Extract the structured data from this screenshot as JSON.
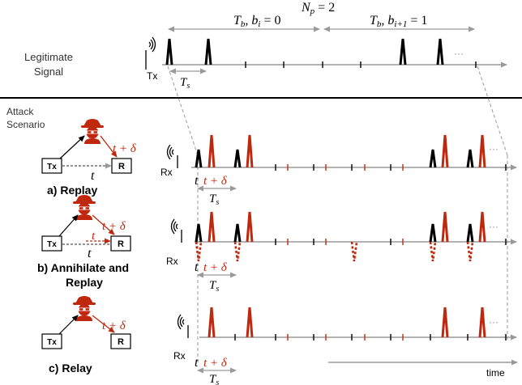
{
  "legit": {
    "label_line1": "Legitimate",
    "label_line2": "Signal",
    "tx": "Tx",
    "tb0": "T",
    "tb0_sub": "b",
    "tb0_rest": ", b",
    "tb0_sub2": "i",
    "tb0_val": " = 0",
    "np": "N",
    "np_sub": "p",
    "np_val": " = 2",
    "tb1": "T",
    "tb1_sub": "b",
    "tb1_rest": ", b",
    "tb1_sub2": "i+1",
    "tb1_val": " = 1",
    "ts": "T",
    "ts_sub": "s",
    "dots": "···"
  },
  "attack": {
    "label_line1": "Attack",
    "label_line2": "Scenario",
    "rx": "Rx",
    "t": "t",
    "t_delta": "t + δ",
    "ts": "T",
    "ts_sub": "s",
    "dots": "···",
    "time": "time"
  },
  "scenarios": [
    {
      "title": "a) Replay",
      "tx": "Tx",
      "r": "R",
      "t": "t",
      "t_delta": "t + δ"
    },
    {
      "title_line1": "b) Annihilate and",
      "title_line2": "Replay",
      "tx": "Tx",
      "r": "R",
      "t": "t",
      "t_delta": "t + δ"
    },
    {
      "title": "c) Relay",
      "tx": "Tx",
      "r": "R",
      "t_delta": "t + δ"
    }
  ],
  "colors": {
    "legit": "#000000",
    "attack": "#c0280e",
    "axis": "#9a9a9a",
    "divider": "#000000"
  }
}
